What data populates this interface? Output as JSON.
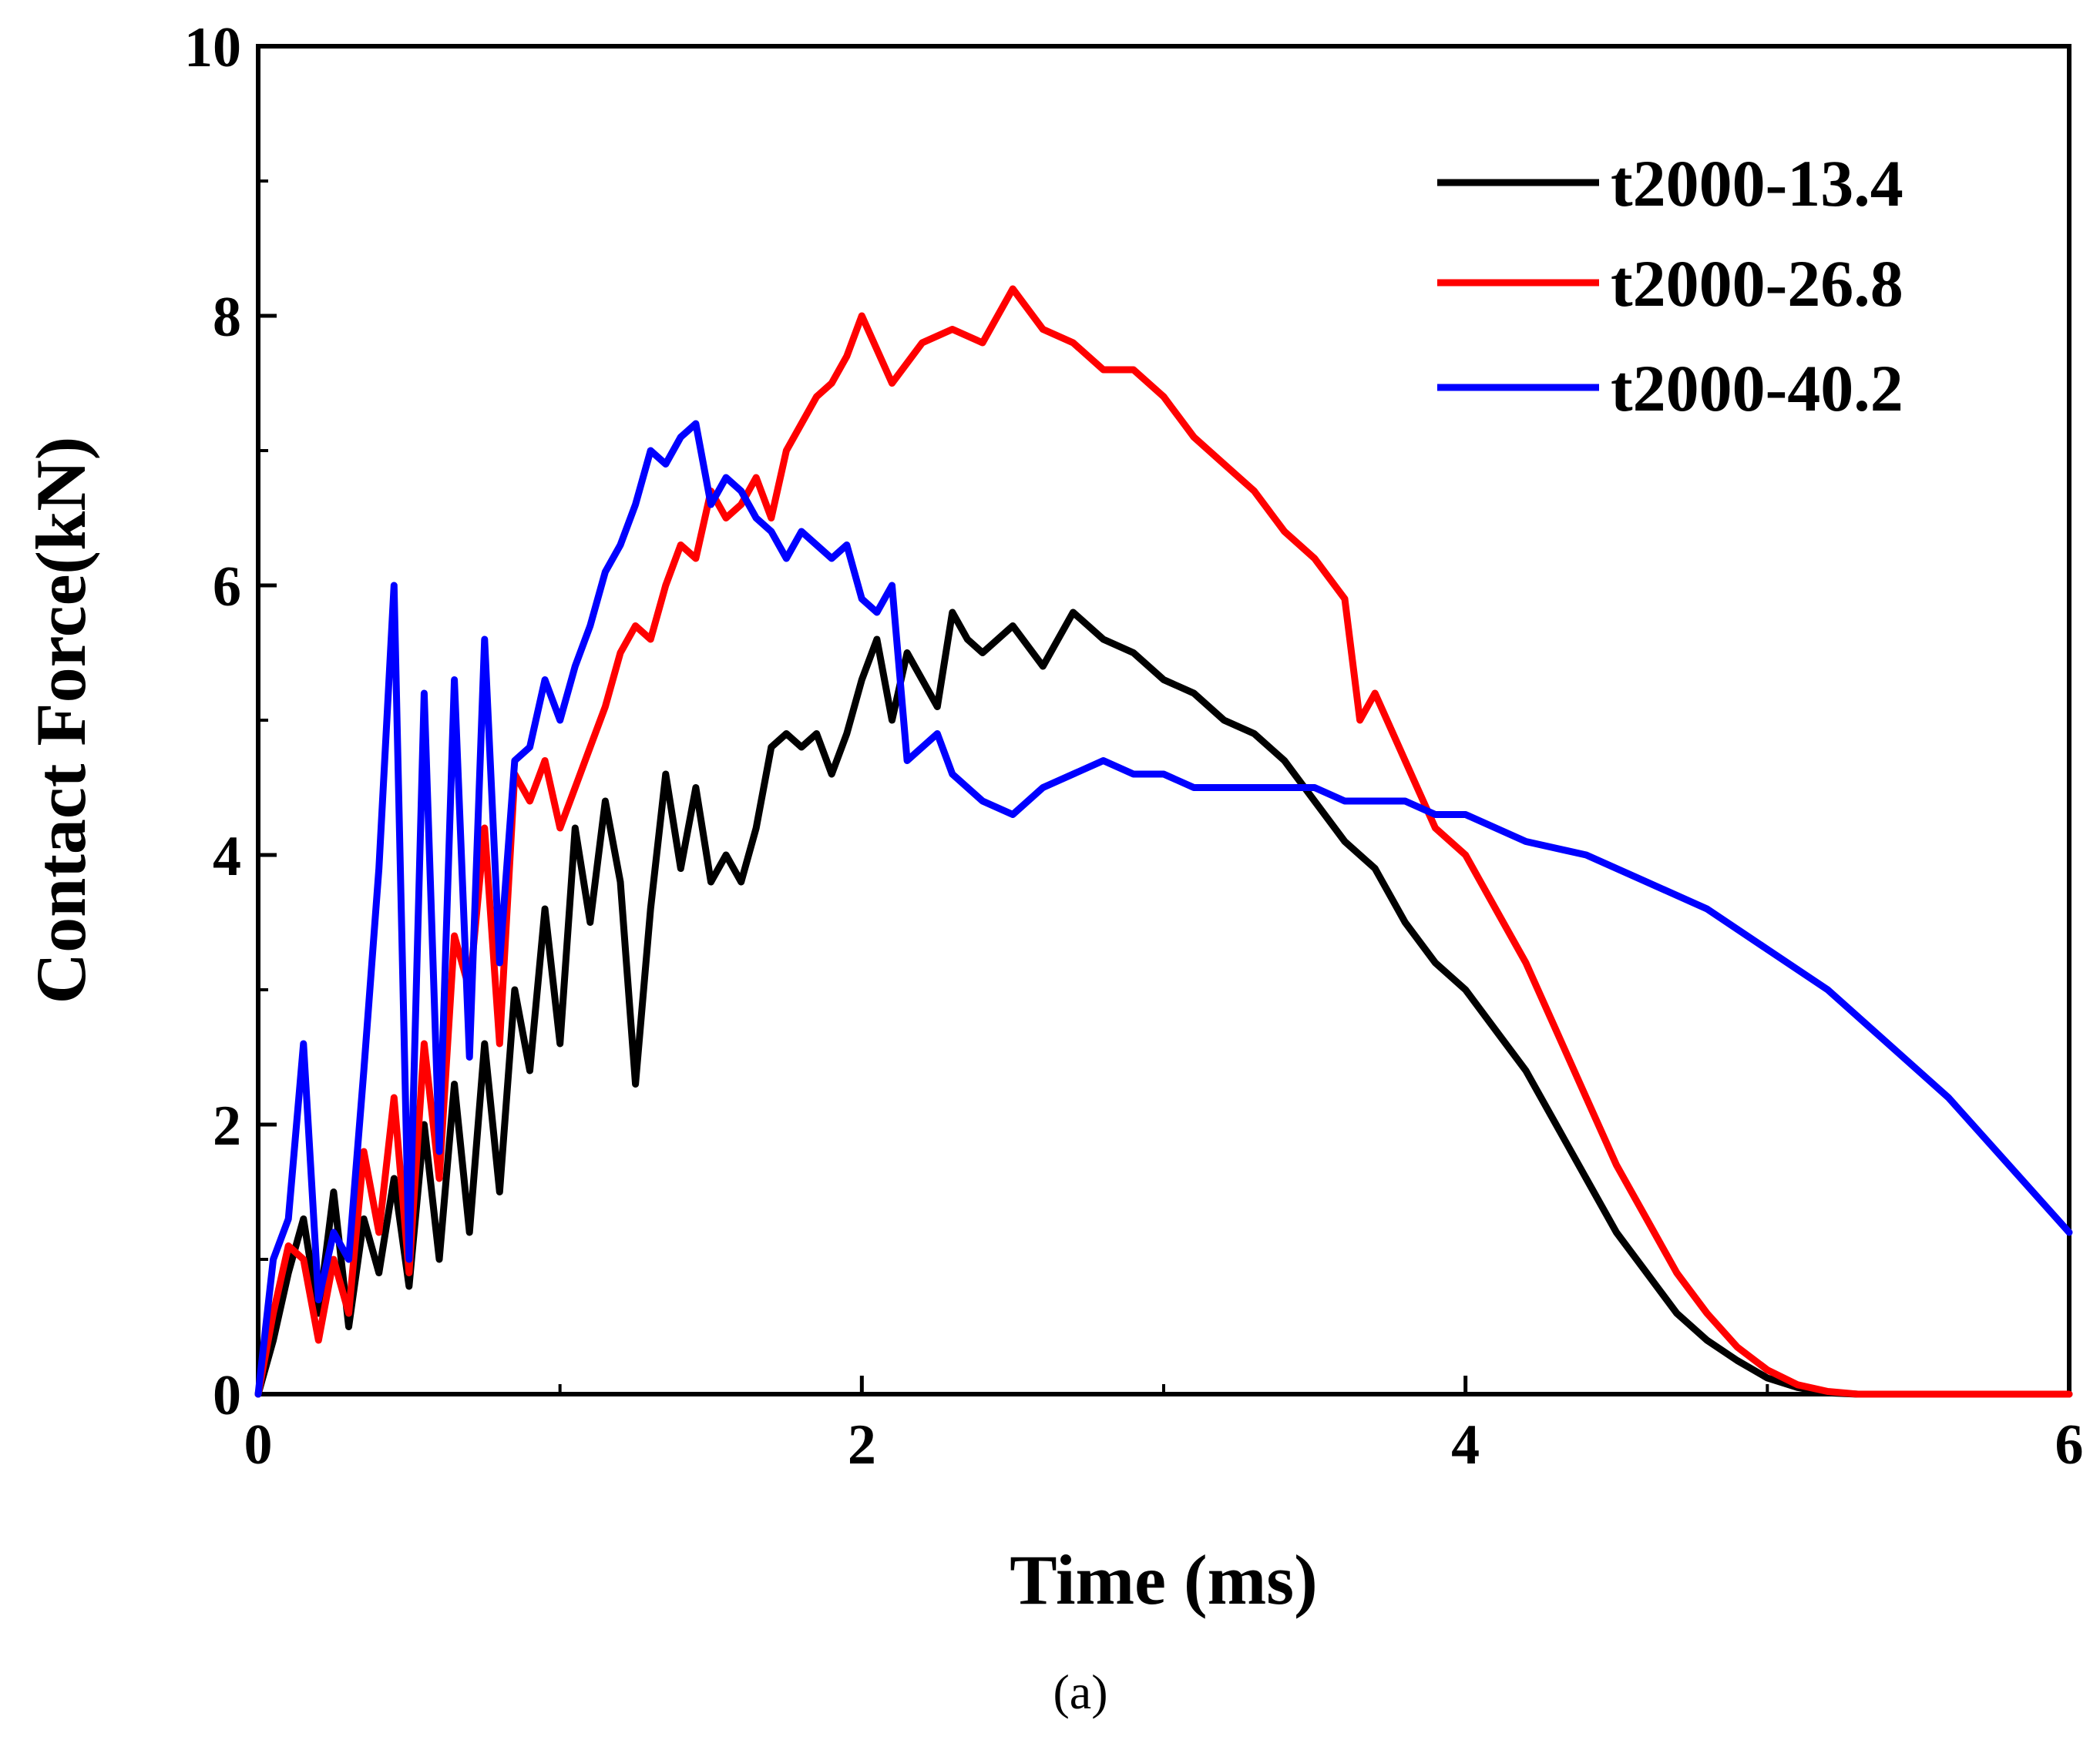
{
  "caption": "(a)",
  "chart_data": {
    "type": "line",
    "xlabel": "Time (ms)",
    "ylabel": "Contact Force(kN)",
    "xlim": [
      0,
      6
    ],
    "ylim": [
      0,
      10
    ],
    "xticks": [
      0,
      2,
      4,
      6
    ],
    "yticks": [
      0,
      2,
      4,
      6,
      8,
      10
    ],
    "xtick_labels": [
      "0",
      "2",
      "4",
      "6"
    ],
    "ytick_labels": [
      "0",
      "2",
      "4",
      "6",
      "8",
      "10"
    ],
    "grid": false,
    "legend_position": "top-right",
    "series": [
      {
        "name": "t2000-13.4",
        "color": "#000000",
        "x": [
          0,
          0.05,
          0.1,
          0.15,
          0.2,
          0.25,
          0.3,
          0.35,
          0.4,
          0.45,
          0.5,
          0.55,
          0.6,
          0.65,
          0.7,
          0.75,
          0.8,
          0.85,
          0.9,
          0.95,
          1.0,
          1.05,
          1.1,
          1.15,
          1.2,
          1.25,
          1.3,
          1.35,
          1.4,
          1.45,
          1.5,
          1.55,
          1.6,
          1.65,
          1.7,
          1.75,
          1.8,
          1.85,
          1.9,
          1.95,
          2.0,
          2.05,
          2.1,
          2.15,
          2.2,
          2.25,
          2.3,
          2.35,
          2.4,
          2.5,
          2.6,
          2.7,
          2.8,
          2.9,
          3.0,
          3.1,
          3.2,
          3.3,
          3.4,
          3.5,
          3.6,
          3.7,
          3.8,
          3.9,
          4.0,
          4.1,
          4.2,
          4.3,
          4.4,
          4.5,
          4.6,
          4.7,
          4.8,
          4.9,
          5.0,
          5.1,
          5.2,
          5.3,
          6.0
        ],
        "y": [
          0,
          0.4,
          0.9,
          1.3,
          0.6,
          1.5,
          0.5,
          1.3,
          0.9,
          1.6,
          0.8,
          2.0,
          1.0,
          2.3,
          1.2,
          2.6,
          1.5,
          3.0,
          2.4,
          3.6,
          2.6,
          4.2,
          3.5,
          4.4,
          3.8,
          2.3,
          3.6,
          4.6,
          3.9,
          4.5,
          3.8,
          4.0,
          3.8,
          4.2,
          4.8,
          4.9,
          4.8,
          4.9,
          4.6,
          4.9,
          5.3,
          5.6,
          5.0,
          5.5,
          5.3,
          5.1,
          5.8,
          5.6,
          5.5,
          5.7,
          5.4,
          5.8,
          5.6,
          5.5,
          5.3,
          5.2,
          5.0,
          4.9,
          4.7,
          4.4,
          4.1,
          3.9,
          3.5,
          3.2,
          3.0,
          2.7,
          2.4,
          2.0,
          1.6,
          1.2,
          0.9,
          0.6,
          0.4,
          0.25,
          0.12,
          0.05,
          0.01,
          0,
          0
        ]
      },
      {
        "name": "t2000-26.8",
        "color": "#ff0000",
        "x": [
          0,
          0.05,
          0.1,
          0.15,
          0.2,
          0.25,
          0.3,
          0.35,
          0.4,
          0.45,
          0.5,
          0.55,
          0.6,
          0.65,
          0.7,
          0.75,
          0.8,
          0.85,
          0.9,
          0.95,
          1.0,
          1.05,
          1.1,
          1.15,
          1.2,
          1.25,
          1.3,
          1.35,
          1.4,
          1.45,
          1.5,
          1.55,
          1.6,
          1.65,
          1.7,
          1.75,
          1.8,
          1.85,
          1.9,
          1.95,
          2.0,
          2.1,
          2.2,
          2.3,
          2.4,
          2.5,
          2.6,
          2.7,
          2.8,
          2.9,
          3.0,
          3.1,
          3.2,
          3.3,
          3.4,
          3.5,
          3.6,
          3.65,
          3.7,
          3.8,
          3.9,
          4.0,
          4.1,
          4.2,
          4.3,
          4.4,
          4.5,
          4.6,
          4.7,
          4.8,
          4.9,
          5.0,
          5.1,
          5.2,
          5.3,
          5.4,
          5.5,
          6.0
        ],
        "y": [
          0,
          0.6,
          1.1,
          1.0,
          0.4,
          1.0,
          0.6,
          1.8,
          1.2,
          2.2,
          0.9,
          2.6,
          1.6,
          3.4,
          3.0,
          4.2,
          2.6,
          4.6,
          4.4,
          4.7,
          4.2,
          4.5,
          4.8,
          5.1,
          5.5,
          5.7,
          5.6,
          6.0,
          6.3,
          6.2,
          6.7,
          6.5,
          6.6,
          6.8,
          6.5,
          7.0,
          7.2,
          7.4,
          7.5,
          7.7,
          8.0,
          7.5,
          7.8,
          7.9,
          7.8,
          8.2,
          7.9,
          7.8,
          7.6,
          7.6,
          7.4,
          7.1,
          6.9,
          6.7,
          6.4,
          6.2,
          5.9,
          5.0,
          5.2,
          4.7,
          4.2,
          4.0,
          3.6,
          3.2,
          2.7,
          2.2,
          1.7,
          1.3,
          0.9,
          0.6,
          0.35,
          0.18,
          0.07,
          0.02,
          0,
          0,
          0,
          0
        ]
      },
      {
        "name": "t2000-40.2",
        "color": "#0000ff",
        "x": [
          0,
          0.05,
          0.1,
          0.15,
          0.2,
          0.25,
          0.3,
          0.35,
          0.4,
          0.45,
          0.5,
          0.55,
          0.6,
          0.65,
          0.7,
          0.75,
          0.8,
          0.85,
          0.9,
          0.95,
          1.0,
          1.05,
          1.1,
          1.15,
          1.2,
          1.25,
          1.3,
          1.35,
          1.4,
          1.45,
          1.5,
          1.55,
          1.6,
          1.65,
          1.7,
          1.75,
          1.8,
          1.85,
          1.9,
          1.95,
          2.0,
          2.05,
          2.1,
          2.15,
          2.2,
          2.25,
          2.3,
          2.4,
          2.5,
          2.6,
          2.7,
          2.8,
          2.9,
          3.0,
          3.1,
          3.2,
          3.3,
          3.4,
          3.5,
          3.6,
          3.7,
          3.8,
          3.9,
          4.0,
          4.2,
          4.4,
          4.6,
          4.8,
          5.0,
          5.2,
          5.4,
          5.6,
          5.8,
          6.0
        ],
        "y": [
          0,
          1.0,
          1.3,
          2.6,
          0.7,
          1.2,
          1.0,
          2.4,
          3.9,
          6.0,
          1.0,
          5.2,
          1.8,
          5.3,
          2.5,
          5.6,
          3.2,
          4.7,
          4.8,
          5.3,
          5.0,
          5.4,
          5.7,
          6.1,
          6.3,
          6.6,
          7.0,
          6.9,
          7.1,
          7.2,
          6.6,
          6.8,
          6.7,
          6.5,
          6.4,
          6.2,
          6.4,
          6.3,
          6.2,
          6.3,
          5.9,
          5.8,
          6.0,
          4.7,
          4.8,
          4.9,
          4.6,
          4.4,
          4.3,
          4.5,
          4.6,
          4.7,
          4.6,
          4.6,
          4.5,
          4.5,
          4.5,
          4.5,
          4.5,
          4.4,
          4.4,
          4.4,
          4.3,
          4.3,
          4.1,
          4.0,
          3.8,
          3.6,
          3.3,
          3.0,
          2.6,
          2.2,
          1.7,
          1.2
        ]
      }
    ]
  }
}
